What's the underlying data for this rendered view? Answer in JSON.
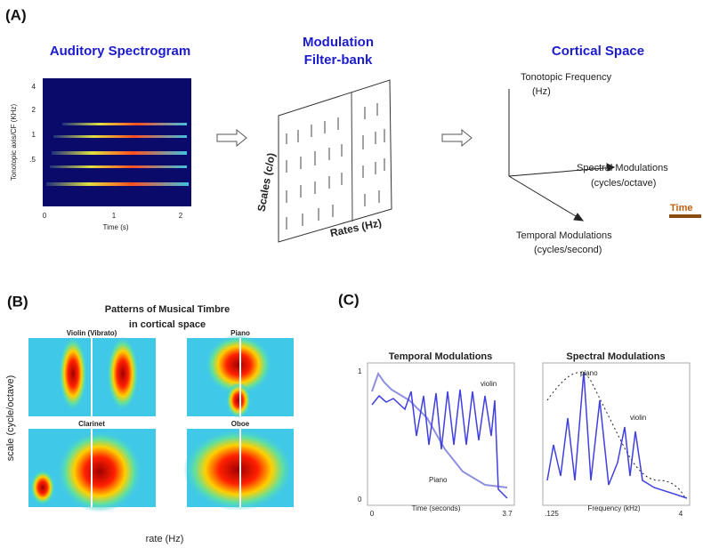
{
  "panel_a": {
    "label": "(A)",
    "spectrogram": {
      "title": "Auditory Spectrogram",
      "ylabel": "Tonotopic axis/CF (KHz)",
      "yticks": [
        "4",
        "2",
        "1",
        ".5"
      ],
      "xlabel": "Time (s)",
      "xticks": [
        "0",
        "1",
        "2"
      ]
    },
    "filterbank": {
      "title_lines": [
        "Modulation",
        "Filter-bank"
      ],
      "ylabel": "Scales (c/o)",
      "xlabel": "Rates (Hz)"
    },
    "cortical": {
      "title": "Cortical Space",
      "axes": [
        [
          "Tonotopic Frequency",
          "(Hz)"
        ],
        [
          "Spectral Modulations",
          "(cycles/octave)"
        ],
        [
          "Temporal Modulations",
          "(cycles/second)"
        ]
      ],
      "time_label": "Time"
    }
  },
  "panel_b": {
    "label": "(B)",
    "title_lines": [
      "Patterns of Musical Timbre",
      "in cortical space"
    ],
    "ylabel": "scale (cycle/octave)",
    "xlabel": "rate (Hz)",
    "plots": [
      "Violin (Vibrato)",
      "Piano",
      "Clarinet",
      "Oboe"
    ]
  },
  "panel_c": {
    "label": "(C)",
    "temporal": {
      "title": "Temporal Modulations",
      "xlabel": "Time (seconds)",
      "xticks": [
        "0",
        "3.7"
      ],
      "yticks": [
        "1",
        "0"
      ],
      "curve_labels": [
        "violin",
        "Piano"
      ]
    },
    "spectral": {
      "title": "Spectral Modulations",
      "xlabel": "Frequency (kHz)",
      "xticks": [
        ".125",
        "4"
      ],
      "curve_labels": [
        "piano",
        "violin"
      ]
    }
  }
}
